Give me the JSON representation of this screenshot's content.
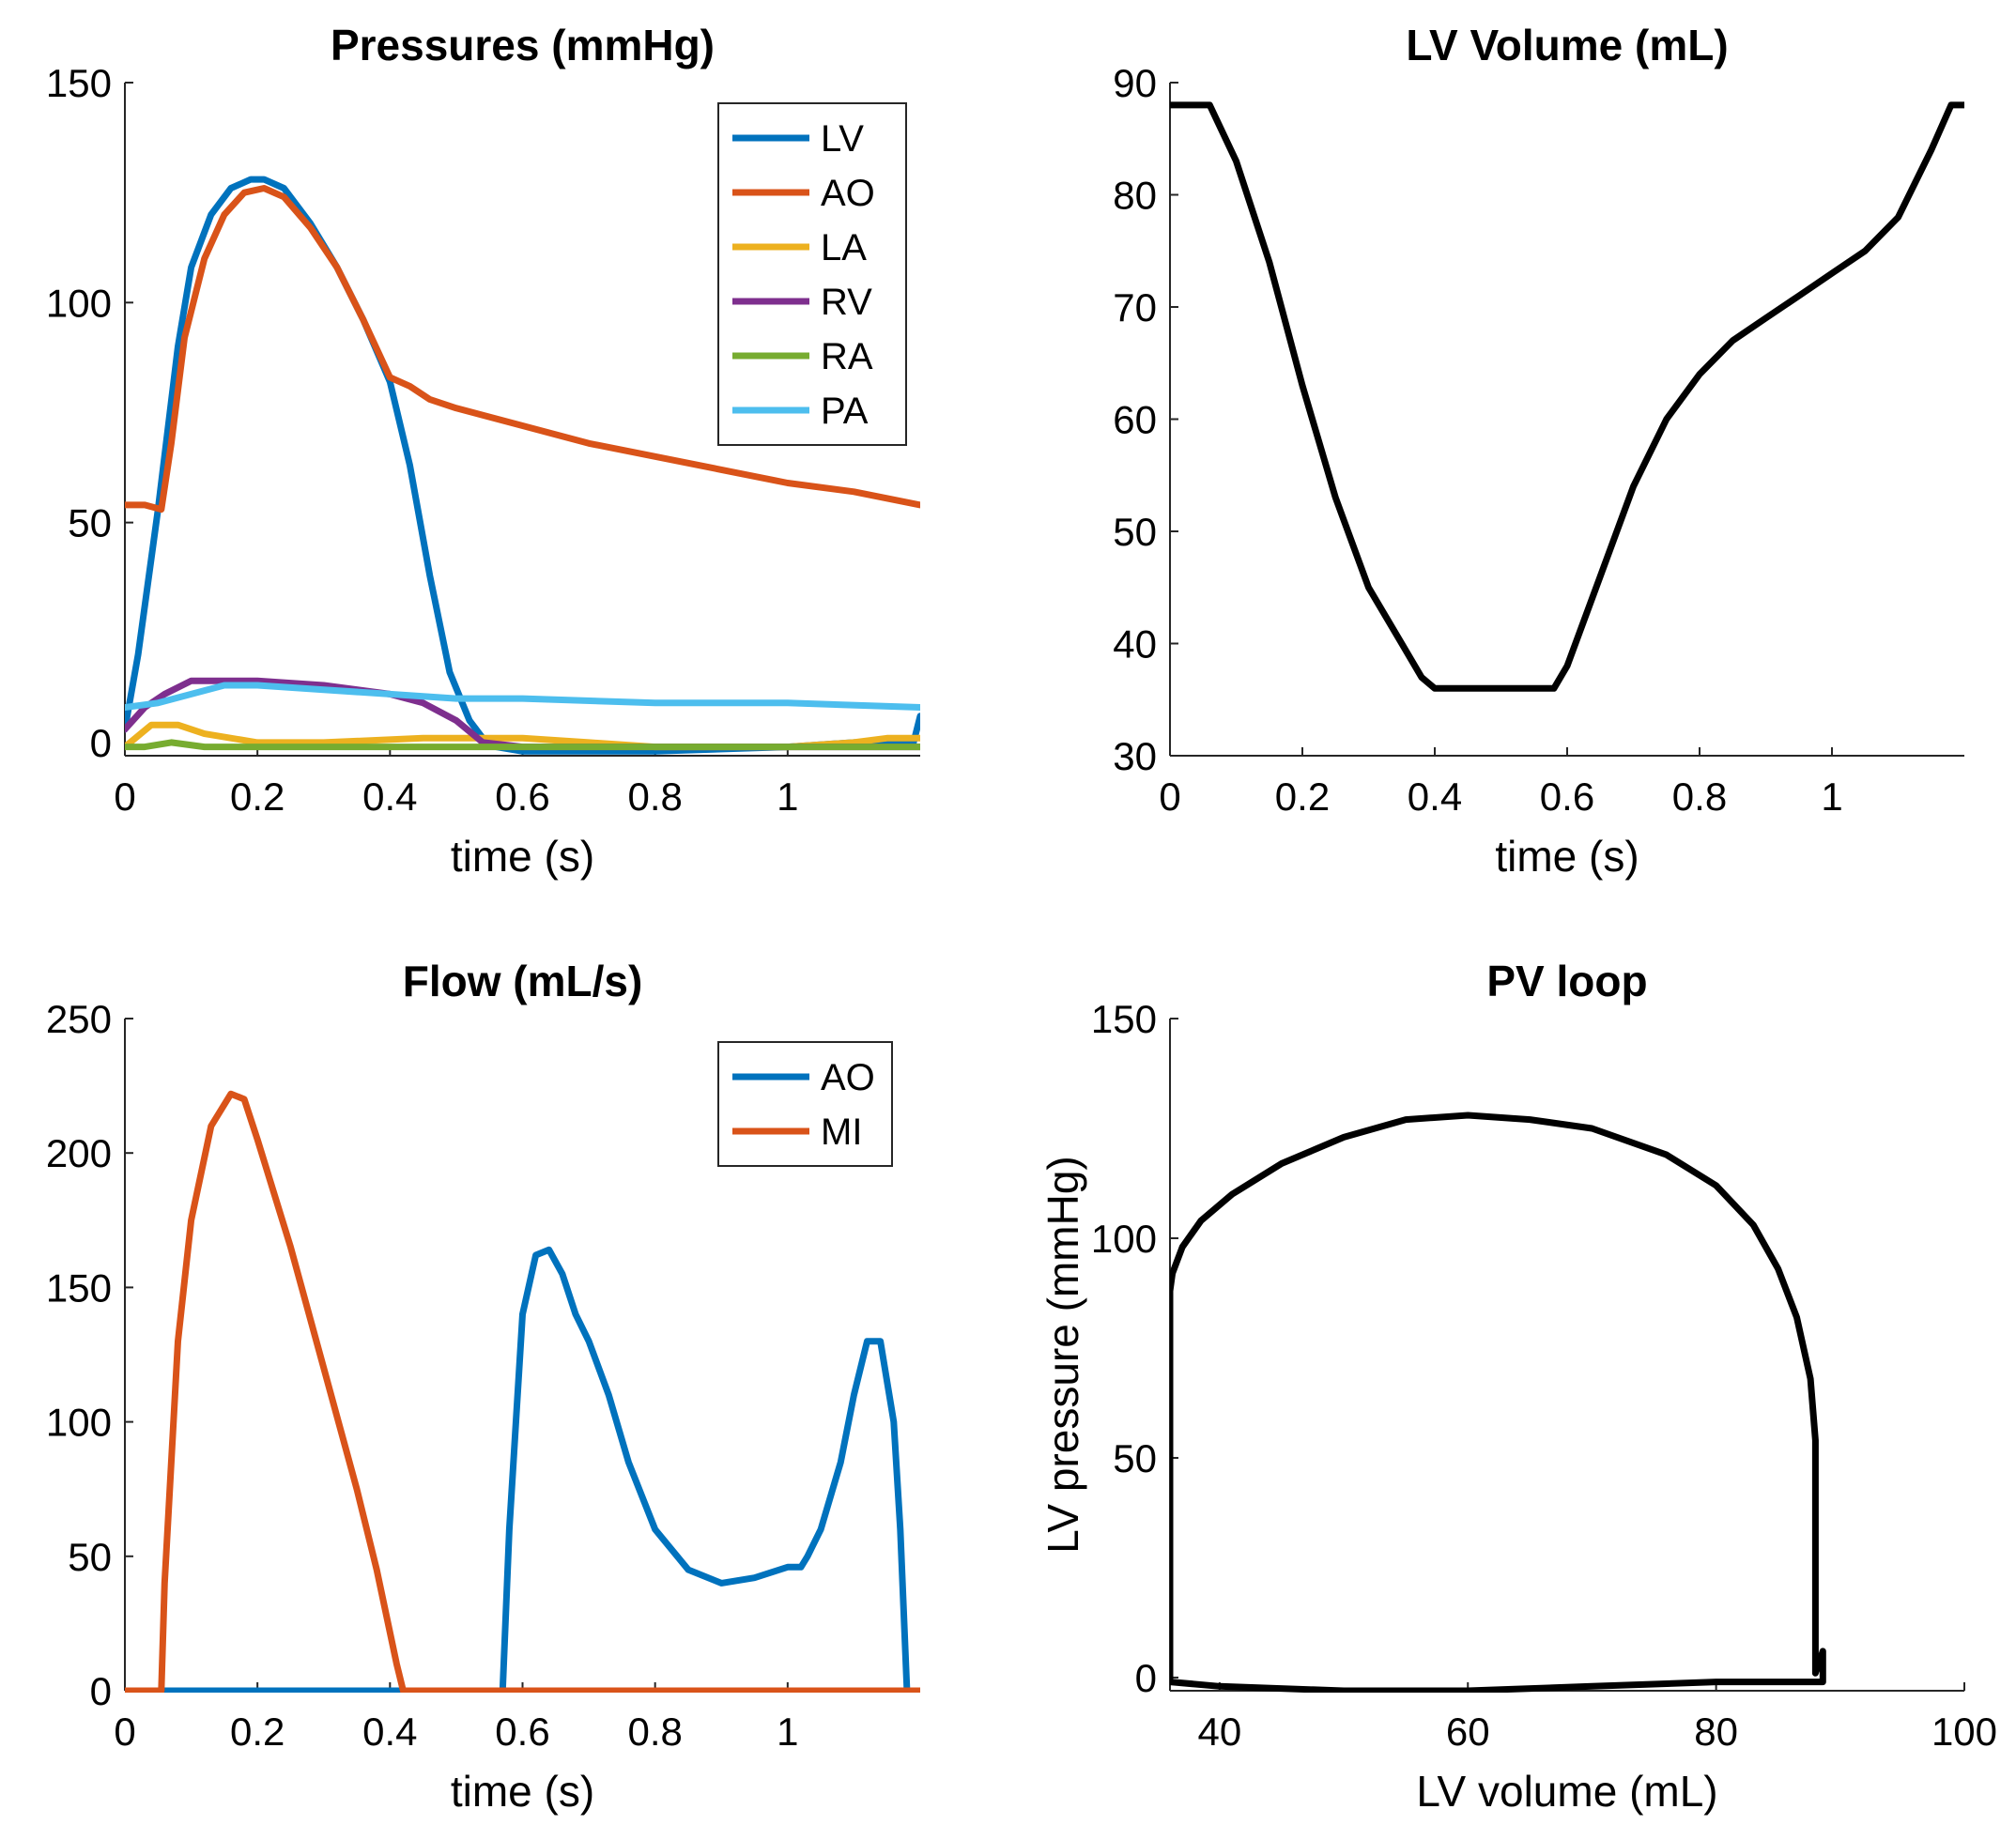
{
  "chart_data": [
    {
      "id": "pressures",
      "type": "line",
      "title": "Pressures (mmHg)",
      "xlabel": "time (s)",
      "ylabel": "",
      "xlim": [
        0,
        1.2
      ],
      "ylim": [
        -3,
        150
      ],
      "xticks": [
        0,
        0.2,
        0.4,
        0.6,
        0.8,
        1
      ],
      "xtick_labels": [
        "0",
        "0.2",
        "0.4",
        "0.6",
        "0.8",
        "1"
      ],
      "yticks": [
        0,
        50,
        100,
        150
      ],
      "ytick_labels": [
        "0",
        "50",
        "100",
        "150"
      ],
      "legend_position": "top-right",
      "series": [
        {
          "name": "LV",
          "color": "#0072BD",
          "x": [
            0,
            0.02,
            0.05,
            0.08,
            0.1,
            0.13,
            0.16,
            0.19,
            0.21,
            0.24,
            0.28,
            0.32,
            0.36,
            0.4,
            0.43,
            0.46,
            0.49,
            0.52,
            0.54,
            0.56,
            0.6,
            0.8,
            1.0,
            1.1,
            1.19,
            1.2
          ],
          "y": [
            3,
            20,
            53,
            90,
            108,
            120,
            126,
            128,
            128,
            126,
            118,
            108,
            96,
            82,
            63,
            38,
            16,
            5,
            1,
            -1,
            -2,
            -2,
            -1,
            0,
            0,
            6
          ]
        },
        {
          "name": "AO",
          "color": "#D95319",
          "x": [
            0,
            0.03,
            0.055,
            0.07,
            0.09,
            0.12,
            0.15,
            0.18,
            0.21,
            0.24,
            0.28,
            0.32,
            0.36,
            0.4,
            0.43,
            0.46,
            0.5,
            0.6,
            0.7,
            0.8,
            0.9,
            1.0,
            1.1,
            1.2
          ],
          "y": [
            54,
            54,
            53,
            68,
            92,
            110,
            120,
            125,
            126,
            124,
            117,
            108,
            96,
            83,
            81,
            78,
            76,
            72,
            68,
            65,
            62,
            59,
            57,
            54
          ]
        },
        {
          "name": "LA",
          "color": "#EDB120",
          "x": [
            0,
            0.04,
            0.08,
            0.12,
            0.2,
            0.3,
            0.45,
            0.55,
            0.6,
            0.7,
            0.8,
            0.9,
            1.0,
            1.1,
            1.15,
            1.2
          ],
          "y": [
            -1,
            4,
            4,
            2,
            0,
            0,
            1,
            1,
            1,
            0,
            -1,
            -1,
            -1,
            0,
            1,
            1
          ]
        },
        {
          "name": "RV",
          "color": "#7E2F8E",
          "x": [
            0,
            0.03,
            0.06,
            0.1,
            0.14,
            0.2,
            0.3,
            0.4,
            0.45,
            0.5,
            0.54,
            0.6,
            0.8,
            1.0,
            1.2
          ],
          "y": [
            3,
            8,
            11,
            14,
            14,
            14,
            13,
            11,
            9,
            5,
            0,
            -1,
            -1,
            -1,
            -1
          ]
        },
        {
          "name": "RA",
          "color": "#77AC30",
          "x": [
            0,
            0.03,
            0.07,
            0.12,
            0.2,
            0.4,
            0.6,
            0.8,
            1.0,
            1.2
          ],
          "y": [
            -1,
            -1,
            0,
            -1,
            -1,
            -1,
            -1,
            -1,
            -1,
            -1
          ]
        },
        {
          "name": "PA",
          "color": "#4DBEEE",
          "x": [
            0,
            0.05,
            0.1,
            0.15,
            0.2,
            0.3,
            0.4,
            0.5,
            0.6,
            0.8,
            1.0,
            1.2
          ],
          "y": [
            8,
            9,
            11,
            13,
            13,
            12,
            11,
            10,
            10,
            9,
            9,
            8
          ]
        }
      ]
    },
    {
      "id": "lv-volume",
      "type": "line",
      "title": "LV Volume (mL)",
      "xlabel": "time (s)",
      "ylabel": "",
      "xlim": [
        0,
        1.2
      ],
      "ylim": [
        30,
        90
      ],
      "xticks": [
        0,
        0.2,
        0.4,
        0.6,
        0.8,
        1
      ],
      "xtick_labels": [
        "0",
        "0.2",
        "0.4",
        "0.6",
        "0.8",
        "1"
      ],
      "yticks": [
        30,
        40,
        50,
        60,
        70,
        80,
        90
      ],
      "ytick_labels": [
        "30",
        "40",
        "50",
        "60",
        "70",
        "80",
        "90"
      ],
      "series": [
        {
          "name": "LV volume",
          "color": "#000000",
          "x": [
            0,
            0.06,
            0.1,
            0.15,
            0.2,
            0.25,
            0.3,
            0.35,
            0.38,
            0.4,
            0.42,
            0.5,
            0.58,
            0.6,
            0.65,
            0.7,
            0.75,
            0.8,
            0.85,
            0.9,
            0.95,
            1.0,
            1.05,
            1.1,
            1.15,
            1.18,
            1.2
          ],
          "y": [
            88,
            88,
            83,
            74,
            63,
            53,
            45,
            40,
            37,
            36,
            36,
            36,
            36,
            38,
            46,
            54,
            60,
            64,
            67,
            69,
            71,
            73,
            75,
            78,
            84,
            88,
            88
          ]
        }
      ]
    },
    {
      "id": "flow",
      "type": "line",
      "title": "Flow (mL/s)",
      "xlabel": "time (s)",
      "ylabel": "",
      "xlim": [
        0,
        1.2
      ],
      "ylim": [
        0,
        250
      ],
      "xticks": [
        0,
        0.2,
        0.4,
        0.6,
        0.8,
        1
      ],
      "xtick_labels": [
        "0",
        "0.2",
        "0.4",
        "0.6",
        "0.8",
        "1"
      ],
      "yticks": [
        0,
        50,
        100,
        150,
        200,
        250
      ],
      "ytick_labels": [
        "0",
        "50",
        "100",
        "150",
        "200",
        "250"
      ],
      "legend_position": "top-right",
      "series": [
        {
          "name": "AO",
          "color": "#0072BD",
          "x": [
            0,
            0.57,
            0.58,
            0.6,
            0.62,
            0.64,
            0.66,
            0.68,
            0.7,
            0.73,
            0.76,
            0.8,
            0.85,
            0.9,
            0.95,
            1.0,
            1.02,
            1.03,
            1.05,
            1.08,
            1.1,
            1.12,
            1.14,
            1.16,
            1.17,
            1.18,
            1.2
          ],
          "y": [
            0,
            0,
            60,
            140,
            162,
            164,
            155,
            140,
            130,
            110,
            85,
            60,
            45,
            40,
            42,
            46,
            46,
            50,
            60,
            85,
            110,
            130,
            130,
            100,
            60,
            0,
            0
          ]
        },
        {
          "name": "MI",
          "color": "#D95319",
          "x": [
            0,
            0.055,
            0.06,
            0.08,
            0.1,
            0.13,
            0.16,
            0.18,
            0.2,
            0.25,
            0.3,
            0.35,
            0.38,
            0.41,
            0.42,
            0.44,
            1.2
          ],
          "y": [
            0,
            0,
            40,
            130,
            175,
            210,
            222,
            220,
            205,
            165,
            120,
            75,
            45,
            10,
            0,
            0,
            0
          ]
        }
      ]
    },
    {
      "id": "pv-loop",
      "type": "line",
      "title": "PV loop",
      "xlabel": "LV volume (mL)",
      "ylabel": "LV pressure (mmHg)",
      "xlim": [
        36,
        100
      ],
      "ylim": [
        -3,
        150
      ],
      "xticks": [
        40,
        60,
        80,
        100
      ],
      "xtick_labels": [
        "40",
        "60",
        "80",
        "100"
      ],
      "yticks": [
        0,
        50,
        100,
        150
      ],
      "ytick_labels": [
        "0",
        "50",
        "100",
        "150"
      ],
      "series": [
        {
          "name": "PV loop",
          "color": "#000000",
          "x": [
            88,
            88,
            87.6,
            86.5,
            85,
            83,
            80,
            76,
            70,
            65,
            60,
            55,
            50,
            45,
            41,
            38.5,
            37,
            36.2,
            36,
            36,
            36,
            40,
            50,
            60,
            70,
            80,
            86,
            88,
            88.6,
            88.6,
            88
          ],
          "y": [
            1,
            54,
            68,
            82,
            93,
            103,
            112,
            119,
            125,
            127,
            128,
            127,
            123,
            117,
            110,
            104,
            98,
            92,
            88,
            3,
            -1,
            -2,
            -3,
            -3,
            -2,
            -1,
            -1,
            -1,
            -1,
            6,
            1
          ]
        }
      ]
    }
  ]
}
